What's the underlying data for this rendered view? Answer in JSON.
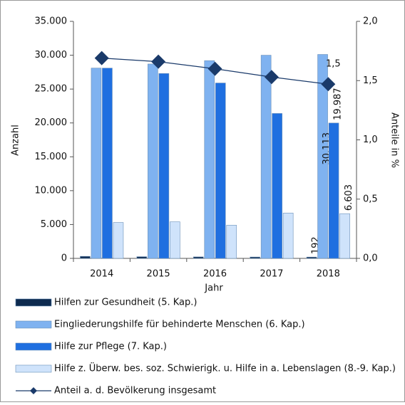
{
  "chart_data": {
    "type": "bar_line",
    "categories": [
      "2014",
      "2015",
      "2016",
      "2017",
      "2018"
    ],
    "x_label": "Jahr",
    "y_label": "Anzahl",
    "y2_label": "Anteile in %",
    "ylim": [
      0,
      35000
    ],
    "yticks": [
      0,
      {
        "value": 5000,
        "label": "5.000"
      },
      {
        "value": 10000,
        "label": "10.000"
      },
      {
        "value": 15000,
        "label": "15.000"
      },
      {
        "value": 20000,
        "label": "20.000"
      },
      {
        "value": 25000,
        "label": "25.000"
      },
      {
        "value": 30000,
        "label": "30.000"
      },
      {
        "value": 35000,
        "label": "35.000"
      }
    ],
    "y2lim": [
      0,
      2
    ],
    "y2ticks": [
      {
        "value": 0,
        "label": "0,0"
      },
      {
        "value": 0.5,
        "label": "0,5"
      },
      {
        "value": 1,
        "label": "1,0"
      },
      {
        "value": 1.5,
        "label": "1,5"
      },
      {
        "value": 2,
        "label": "2,0"
      }
    ],
    "series": [
      {
        "name": "Hilfen zur Gesundheit (5. Kap.)",
        "type": "bar",
        "color": "#0d2a4f",
        "values": [
          300,
          250,
          220,
          200,
          192
        ],
        "value_labels": [
          null,
          null,
          null,
          null,
          "192"
        ]
      },
      {
        "name": "Eingliederungshilfe für behinderte Menschen (6. Kap.)",
        "type": "bar",
        "color": "#7fb2f0",
        "values": [
          28100,
          28700,
          29200,
          30000,
          30113
        ],
        "value_labels": [
          null,
          null,
          null,
          null,
          "30.113"
        ]
      },
      {
        "name": "Hilfe zur Pflege (7. Kap.)",
        "type": "bar",
        "color": "#1f6fe0",
        "values": [
          28100,
          27300,
          25900,
          21400,
          19987
        ],
        "value_labels": [
          null,
          null,
          null,
          null,
          "19.987"
        ]
      },
      {
        "name": "Hilfe z. Überw. bes. soz. Schwierigk. u. Hilfe in a. Lebenslagen (8.-9. Kap.)",
        "type": "bar",
        "color": "#cfe3fb",
        "values": [
          5300,
          5400,
          4900,
          6700,
          6603
        ],
        "value_labels": [
          null,
          null,
          null,
          null,
          "6.603"
        ]
      },
      {
        "name": "Anteil a. d. Bevölkerung insgesamt",
        "type": "line",
        "axis": "y2",
        "color": "#1a3a6a",
        "values": [
          1.69,
          1.66,
          1.6,
          1.53,
          1.47
        ],
        "value_labels": [
          null,
          null,
          null,
          null,
          "1,5"
        ]
      }
    ]
  }
}
